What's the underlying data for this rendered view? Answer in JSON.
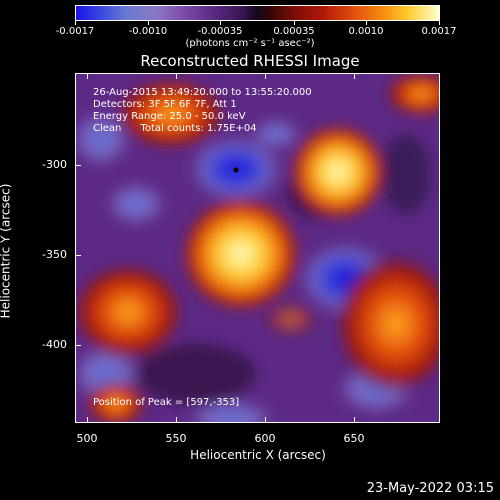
{
  "colorbar": {
    "tick_labels": [
      "-0.0017",
      "-0.0010",
      "-0.00035",
      "0.00035",
      "0.0010",
      "0.0017"
    ],
    "units_label": "(photons cm⁻² s⁻¹ asec⁻²)"
  },
  "title": "Reconstructed RHESSI Image",
  "info": {
    "line1": "26-Aug-2015 13:49:20.000 to 13:55:20.000",
    "line2": "Detectors: 3F 5F 6F 7F, Att 1",
    "line3": "Energy Range: 25.0 - 50.0 keV",
    "line4": "Clean      Total counts: 1.75E+04",
    "peak": "Position of Peak = [597,-353]"
  },
  "axes": {
    "xlabel": "Heliocentric X (arcsec)",
    "ylabel": "Heliocentric Y (arcsec)",
    "xticks": [
      "500",
      "550",
      "600",
      "650"
    ],
    "yticks": [
      "-300",
      "-350",
      "-400"
    ]
  },
  "footer": "23-May-2022 03:15",
  "colors": {
    "background": "#000000",
    "text": "#ffffff",
    "negative": "#1a12e6",
    "positive": "#ffffcc"
  }
}
